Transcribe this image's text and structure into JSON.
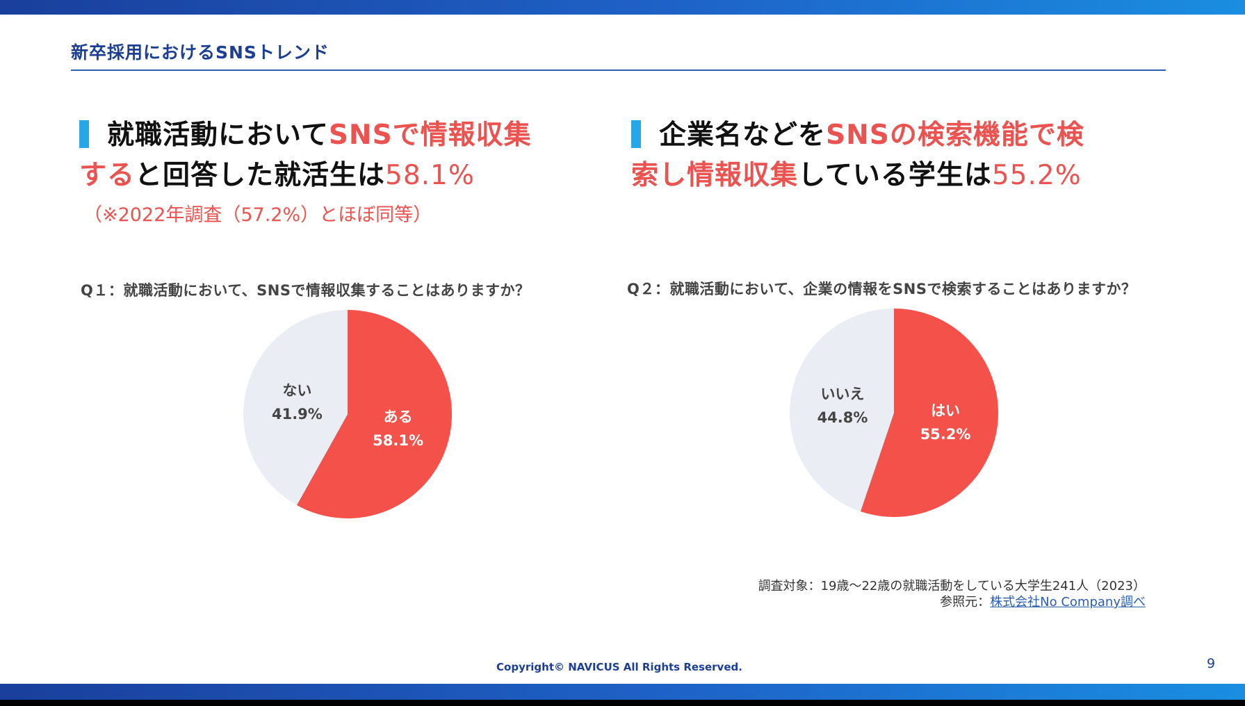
{
  "page": {
    "title": "新卒採用におけるSNSトレンド",
    "copyright": "Copyright© NAVICUS All Rights Reserved.",
    "page_number": "9"
  },
  "left": {
    "headline": {
      "part1": "就職活動において",
      "part2_red": "SNSで情報収集",
      "part3_red": "する",
      "part4": "と回答した就活生は",
      "value": "58.1%"
    },
    "note": "（※2022年調査（57.2%）とほぼ同等）",
    "question": "Q１：就職活動において、SNSで情報収集することはありますか？"
  },
  "right": {
    "headline": {
      "part1": "企業名などを",
      "part2_red": "SNSの検索機能で検",
      "part3_red": "索し情報収集",
      "part4": "している学生は",
      "value": "55.2%"
    },
    "question": "Q２：就職活動において、企業の情報をSNSで検索することはありますか？"
  },
  "source": {
    "line1": "調査対象：19歳〜22歳の就職活動をしている大学生241人（2023）",
    "line2_prefix": "参照元：",
    "line2_link": "株式会社No Company調べ"
  },
  "colors": {
    "accent_red": "#f4514b",
    "neutral": "#eaedf4",
    "brand_blue": "#1c3f94",
    "marker_blue": "#27a8e6"
  },
  "chart_data": [
    {
      "type": "pie",
      "title": "Q１：就職活動において、SNSで情報収集することはありますか？",
      "slices": [
        {
          "label": "ある",
          "value": 58.1,
          "display": "58.1%",
          "color": "#f4514b",
          "text_color": "#ffffff"
        },
        {
          "label": "ない",
          "value": 41.9,
          "display": "41.9%",
          "color": "#eaedf4",
          "text_color": "#444444"
        }
      ]
    },
    {
      "type": "pie",
      "title": "Q２：就職活動において、企業の情報をSNSで検索することはありますか？",
      "slices": [
        {
          "label": "はい",
          "value": 55.2,
          "display": "55.2%",
          "color": "#f4514b",
          "text_color": "#ffffff"
        },
        {
          "label": "いいえ",
          "value": 44.8,
          "display": "44.8%",
          "color": "#eaedf4",
          "text_color": "#444444"
        }
      ]
    }
  ]
}
